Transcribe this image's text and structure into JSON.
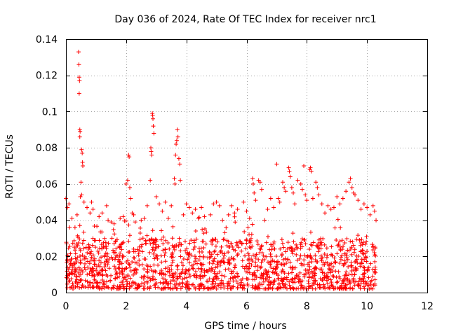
{
  "chart_data": {
    "type": "scatter",
    "title": "Day 036 of 2024, Rate Of TEC Index for receiver nrc1",
    "xlabel": "GPS time / hours",
    "ylabel": "ROTI / TECUs",
    "xlim": [
      0,
      12
    ],
    "ylim": [
      0,
      0.14
    ],
    "xticks": [
      0,
      2,
      4,
      6,
      8,
      10,
      12
    ],
    "xtick_labels": [
      "0",
      "2",
      "4",
      "6",
      "8",
      "10",
      "12"
    ],
    "yticks": [
      0,
      0.02,
      0.04,
      0.06,
      0.08,
      0.1,
      0.12,
      0.14
    ],
    "ytick_labels": [
      "0",
      "0.02",
      "0.04",
      "0.06",
      "0.08",
      "0.1",
      "0.12",
      "0.14"
    ],
    "grid": true,
    "marker": "+",
    "color": "#ff0000",
    "series": [
      {
        "name": "ROTI",
        "note": "dense band of ~0.002-0.03 TECU/s from 0 to 10.3 h plus the distinct spikes/outliers listed here",
        "points": [
          [
            0.0,
            0.052
          ],
          [
            0.05,
            0.047
          ],
          [
            0.1,
            0.049
          ],
          [
            0.12,
            0.036
          ],
          [
            0.2,
            0.041
          ],
          [
            0.3,
            0.036
          ],
          [
            0.37,
            0.043
          ],
          [
            0.42,
            0.133
          ],
          [
            0.43,
            0.126
          ],
          [
            0.44,
            0.119
          ],
          [
            0.45,
            0.117
          ],
          [
            0.44,
            0.11
          ],
          [
            0.46,
            0.09
          ],
          [
            0.47,
            0.089
          ],
          [
            0.46,
            0.086
          ],
          [
            0.52,
            0.079
          ],
          [
            0.54,
            0.077
          ],
          [
            0.55,
            0.072
          ],
          [
            0.56,
            0.07
          ],
          [
            0.5,
            0.061
          ],
          [
            0.52,
            0.054
          ],
          [
            0.48,
            0.053
          ],
          [
            0.6,
            0.05
          ],
          [
            0.7,
            0.047
          ],
          [
            0.8,
            0.044
          ],
          [
            0.85,
            0.05
          ],
          [
            0.9,
            0.046
          ],
          [
            1.1,
            0.042
          ],
          [
            1.2,
            0.044
          ],
          [
            1.35,
            0.048
          ],
          [
            1.4,
            0.04
          ],
          [
            1.5,
            0.039
          ],
          [
            1.6,
            0.038
          ],
          [
            1.8,
            0.041
          ],
          [
            1.9,
            0.042
          ],
          [
            2.0,
            0.06
          ],
          [
            2.05,
            0.062
          ],
          [
            2.08,
            0.076
          ],
          [
            2.1,
            0.075
          ],
          [
            2.12,
            0.058
          ],
          [
            2.15,
            0.052
          ],
          [
            2.2,
            0.044
          ],
          [
            2.25,
            0.043
          ],
          [
            2.3,
            0.039
          ],
          [
            2.5,
            0.04
          ],
          [
            2.6,
            0.041
          ],
          [
            2.7,
            0.048
          ],
          [
            2.8,
            0.062
          ],
          [
            2.82,
            0.08
          ],
          [
            2.83,
            0.078
          ],
          [
            2.85,
            0.076
          ],
          [
            2.87,
            0.099
          ],
          [
            2.88,
            0.098
          ],
          [
            2.89,
            0.096
          ],
          [
            2.9,
            0.092
          ],
          [
            2.92,
            0.088
          ],
          [
            3.0,
            0.053
          ],
          [
            3.1,
            0.049
          ],
          [
            3.2,
            0.045
          ],
          [
            3.3,
            0.05
          ],
          [
            3.4,
            0.041
          ],
          [
            3.5,
            0.048
          ],
          [
            3.6,
            0.063
          ],
          [
            3.62,
            0.06
          ],
          [
            3.64,
            0.076
          ],
          [
            3.66,
            0.082
          ],
          [
            3.68,
            0.084
          ],
          [
            3.7,
            0.09
          ],
          [
            3.72,
            0.086
          ],
          [
            3.75,
            0.074
          ],
          [
            3.78,
            0.071
          ],
          [
            3.8,
            0.062
          ],
          [
            3.9,
            0.043
          ],
          [
            4.0,
            0.049
          ],
          [
            4.1,
            0.047
          ],
          [
            4.2,
            0.044
          ],
          [
            4.3,
            0.046
          ],
          [
            4.4,
            0.041
          ],
          [
            4.5,
            0.047
          ],
          [
            4.6,
            0.042
          ],
          [
            4.8,
            0.043
          ],
          [
            4.9,
            0.049
          ],
          [
            5.0,
            0.05
          ],
          [
            5.1,
            0.048
          ],
          [
            5.2,
            0.04
          ],
          [
            5.4,
            0.043
          ],
          [
            5.5,
            0.048
          ],
          [
            5.6,
            0.044
          ],
          [
            5.7,
            0.046
          ],
          [
            5.9,
            0.05
          ],
          [
            6.0,
            0.045
          ],
          [
            6.1,
            0.041
          ],
          [
            6.2,
            0.063
          ],
          [
            6.22,
            0.06
          ],
          [
            6.25,
            0.055
          ],
          [
            6.3,
            0.051
          ],
          [
            6.4,
            0.062
          ],
          [
            6.45,
            0.061
          ],
          [
            6.5,
            0.057
          ],
          [
            6.6,
            0.04
          ],
          [
            6.7,
            0.046
          ],
          [
            6.8,
            0.052
          ],
          [
            6.9,
            0.047
          ],
          [
            7.0,
            0.071
          ],
          [
            7.05,
            0.052
          ],
          [
            7.1,
            0.05
          ],
          [
            7.2,
            0.061
          ],
          [
            7.25,
            0.058
          ],
          [
            7.3,
            0.056
          ],
          [
            7.4,
            0.069
          ],
          [
            7.42,
            0.067
          ],
          [
            7.45,
            0.064
          ],
          [
            7.5,
            0.058
          ],
          [
            7.55,
            0.055
          ],
          [
            7.6,
            0.049
          ],
          [
            7.7,
            0.062
          ],
          [
            7.8,
            0.06
          ],
          [
            7.85,
            0.057
          ],
          [
            7.9,
            0.07
          ],
          [
            7.95,
            0.054
          ],
          [
            8.0,
            0.051
          ],
          [
            8.1,
            0.068
          ],
          [
            8.12,
            0.069
          ],
          [
            8.15,
            0.067
          ],
          [
            8.2,
            0.052
          ],
          [
            8.3,
            0.061
          ],
          [
            8.35,
            0.058
          ],
          [
            8.4,
            0.054
          ],
          [
            8.5,
            0.049
          ],
          [
            8.6,
            0.044
          ],
          [
            8.7,
            0.048
          ],
          [
            8.8,
            0.046
          ],
          [
            8.9,
            0.047
          ],
          [
            9.0,
            0.053
          ],
          [
            9.1,
            0.049
          ],
          [
            9.2,
            0.052
          ],
          [
            9.3,
            0.056
          ],
          [
            9.4,
            0.061
          ],
          [
            9.45,
            0.063
          ],
          [
            9.5,
            0.058
          ],
          [
            9.55,
            0.055
          ],
          [
            9.6,
            0.054
          ],
          [
            9.7,
            0.051
          ],
          [
            9.8,
            0.046
          ],
          [
            9.9,
            0.049
          ],
          [
            10.0,
            0.047
          ],
          [
            10.1,
            0.043
          ],
          [
            10.2,
            0.048
          ],
          [
            10.25,
            0.045
          ],
          [
            10.3,
            0.04
          ]
        ]
      }
    ]
  }
}
